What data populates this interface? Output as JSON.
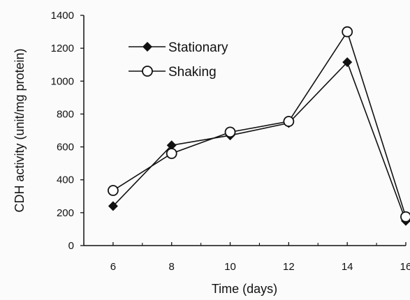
{
  "chart_data": {
    "type": "line",
    "title": "",
    "xlabel": "Time (days)",
    "ylabel": "CDH activity (unit/mg protein)",
    "x": [
      6,
      8,
      10,
      12,
      14,
      16
    ],
    "x_ticks": [
      "6",
      "8",
      "10",
      "12",
      "14",
      "16"
    ],
    "y_ticks": [
      "0",
      "200",
      "400",
      "600",
      "800",
      "1000",
      "1200",
      "1400"
    ],
    "xlim": [
      5,
      16
    ],
    "ylim": [
      0,
      1400
    ],
    "grid": false,
    "legend_position": "top-left",
    "series": [
      {
        "name": "Stationary",
        "marker": "filled-diamond",
        "values": [
          240,
          610,
          670,
          745,
          1115,
          150
        ]
      },
      {
        "name": "Shaking",
        "marker": "open-circle",
        "values": [
          335,
          560,
          690,
          755,
          1300,
          175
        ]
      }
    ]
  }
}
